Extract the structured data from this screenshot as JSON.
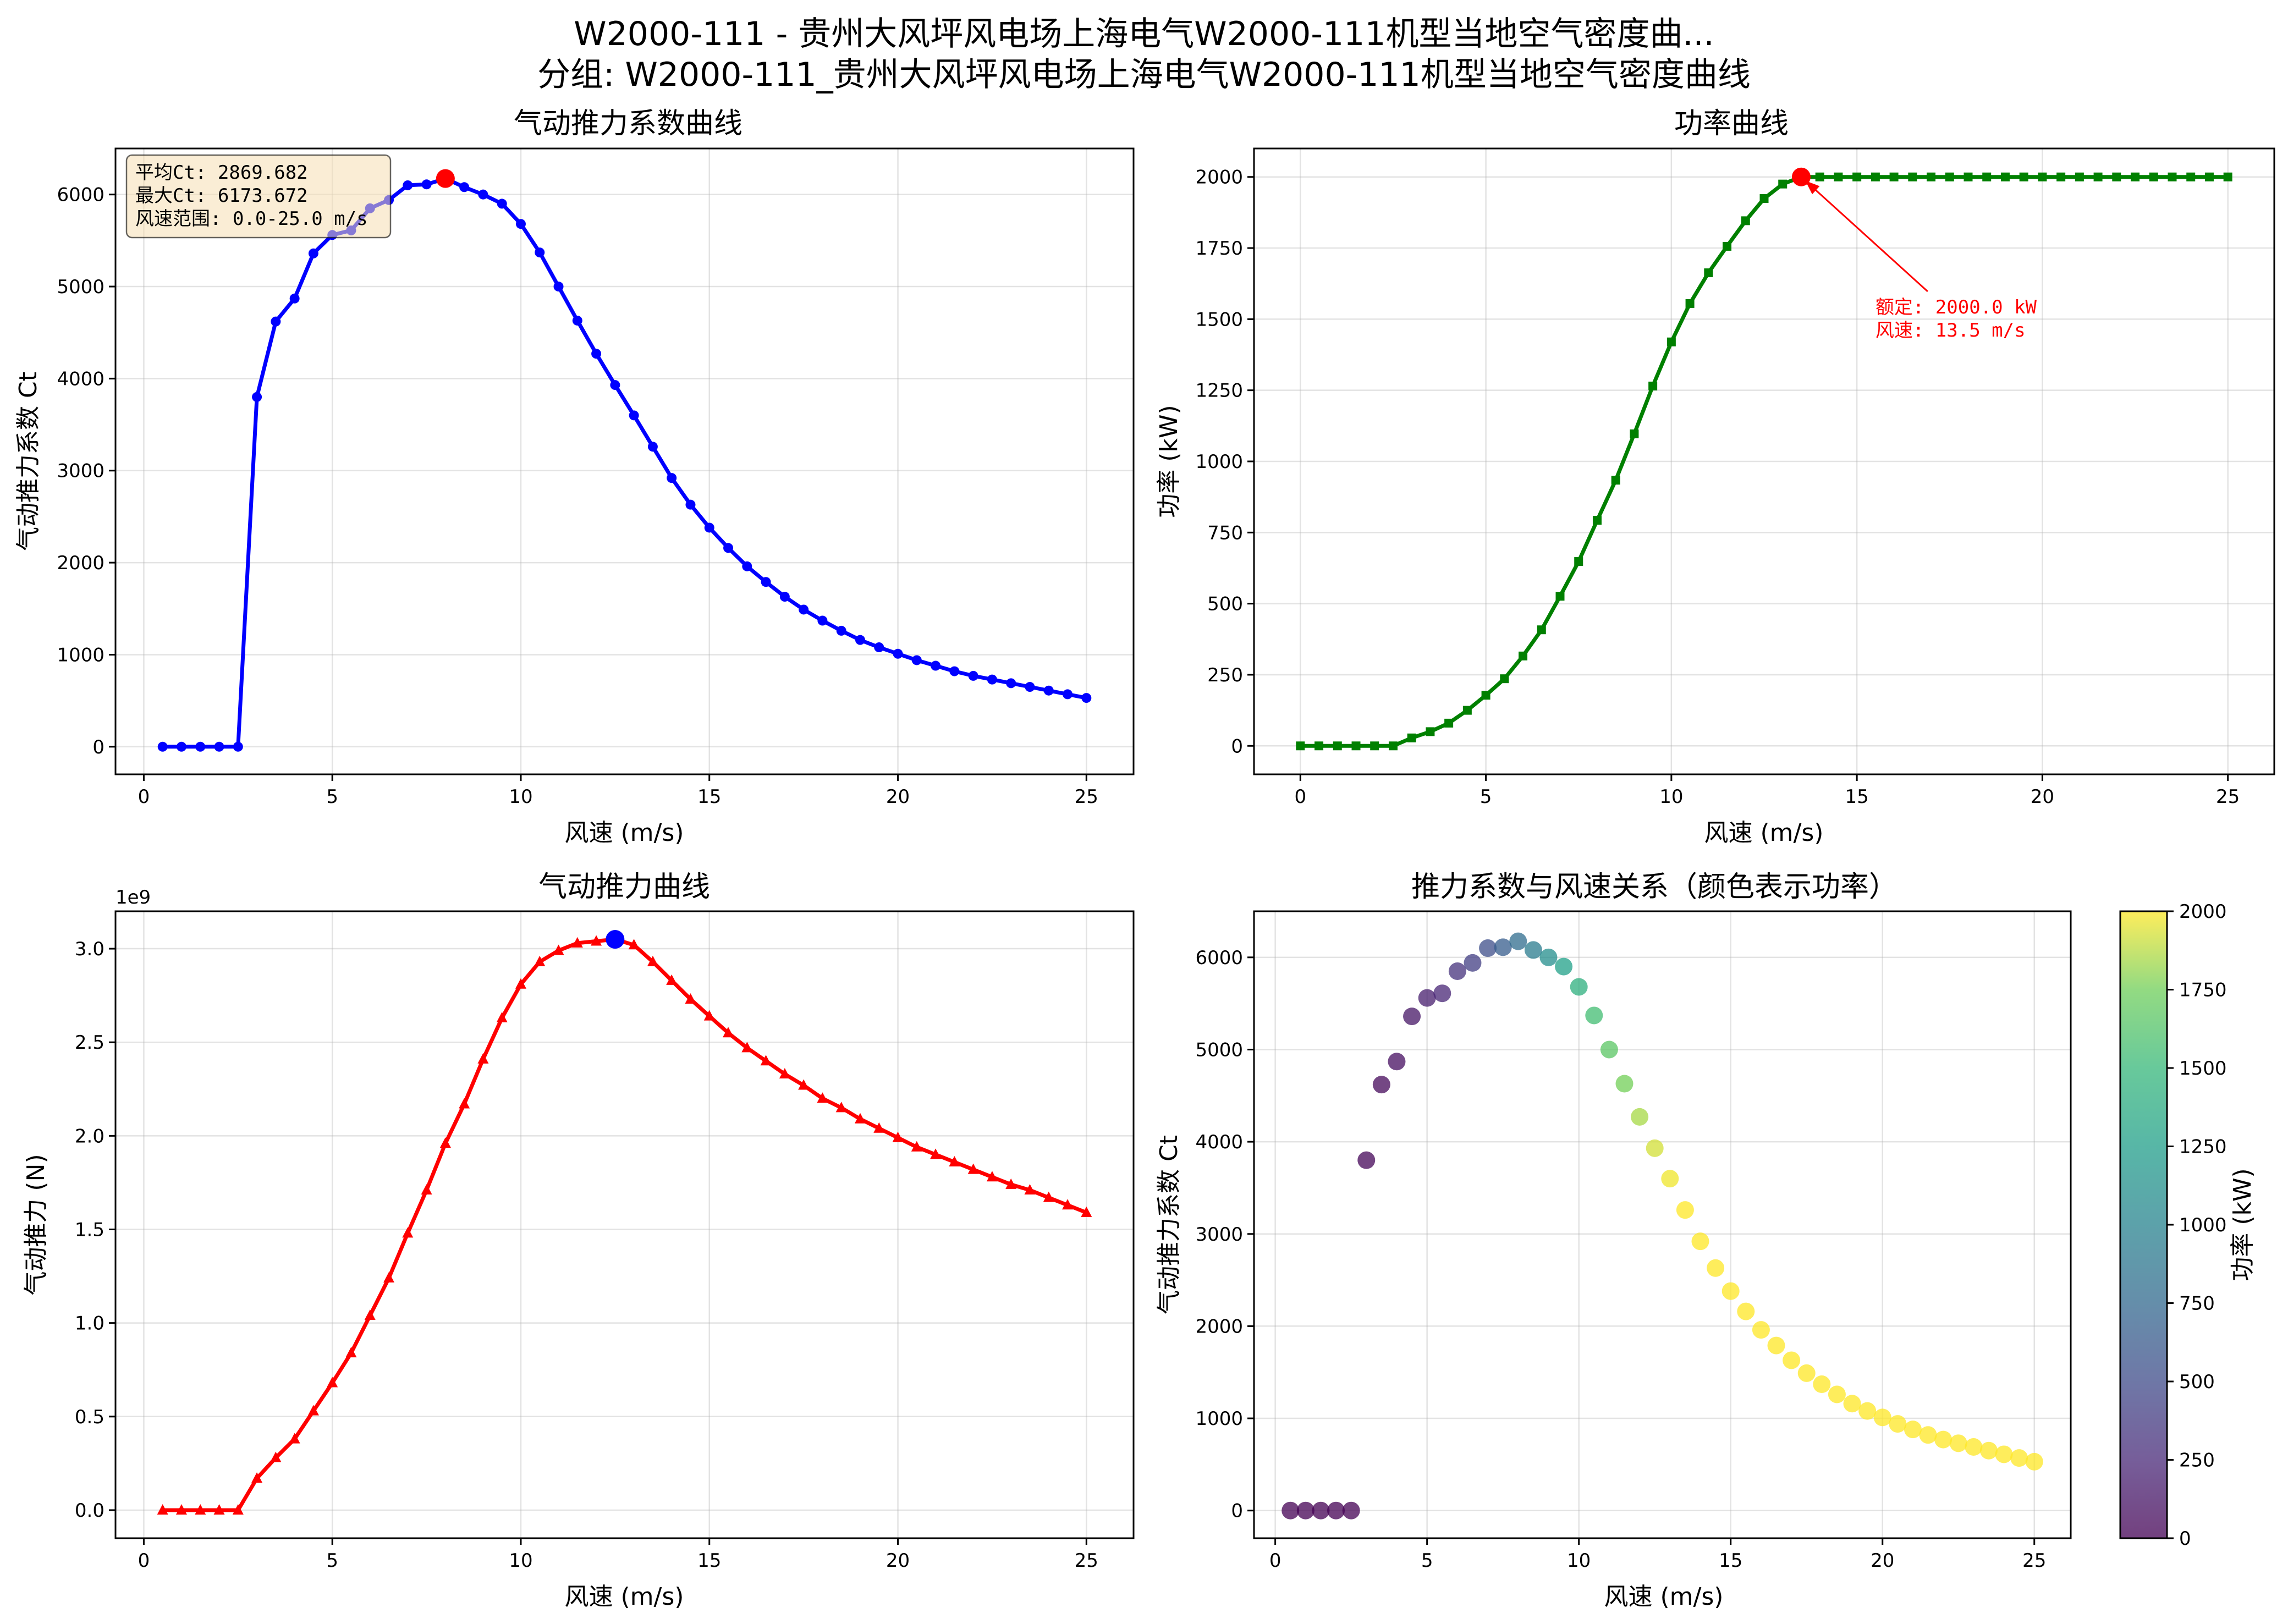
{
  "figure": {
    "title_line1": "W2000-111 - 贵州大风坪风电场上海电气W2000-111机型当地空气密度曲...",
    "title_line2": "分组: W2000-111_贵州大风坪风电场上海电气W2000-111机型当地空气密度曲线"
  },
  "colors": {
    "ct_line": "#0000ff",
    "power_line": "#008000",
    "thrust_line": "#ff0000",
    "highlight_red": "#ff0000",
    "highlight_blue": "#0000ff",
    "stats_box_bg": "#f5deb3",
    "colormap": "viridis"
  },
  "chart_data": [
    {
      "id": "ct",
      "type": "line",
      "title": "气动推力系数曲线",
      "xlabel": "风速 (m/s)",
      "ylabel": "气动推力系数 Ct",
      "xlim": [
        -0.75,
        26.25
      ],
      "ylim": [
        -300,
        6500
      ],
      "xticks": [
        0,
        5,
        10,
        15,
        20,
        25
      ],
      "yticks": [
        0,
        1000,
        2000,
        3000,
        4000,
        5000,
        6000
      ],
      "grid": true,
      "marker": "circle",
      "x": [
        0.5,
        1.0,
        1.5,
        2.0,
        2.5,
        3.0,
        3.5,
        4.0,
        4.5,
        5.0,
        5.5,
        6.0,
        6.5,
        7.0,
        7.5,
        8.0,
        8.5,
        9.0,
        9.5,
        10.0,
        10.5,
        11.0,
        11.5,
        12.0,
        12.5,
        13.0,
        13.5,
        14.0,
        14.5,
        15.0,
        15.5,
        16.0,
        16.5,
        17.0,
        17.5,
        18.0,
        18.5,
        19.0,
        19.5,
        20.0,
        20.5,
        21.0,
        21.5,
        22.0,
        22.5,
        23.0,
        23.5,
        24.0,
        24.5,
        25.0
      ],
      "y": [
        0,
        0,
        0,
        0,
        0,
        3800,
        4620,
        4870,
        5360,
        5560,
        5610,
        5850,
        5940,
        6100,
        6110,
        6174,
        6080,
        6000,
        5900,
        5680,
        5370,
        5000,
        4630,
        4270,
        3930,
        3600,
        3260,
        2920,
        2630,
        2380,
        2160,
        1960,
        1790,
        1630,
        1490,
        1370,
        1260,
        1160,
        1080,
        1010,
        940,
        880,
        820,
        770,
        730,
        690,
        650,
        610,
        570,
        530
      ],
      "highlight": {
        "x": 8.0,
        "y": 6173.672
      },
      "stats": {
        "line1": "平均Ct: 2869.682",
        "line2": "最大Ct: 6173.672",
        "line3": "风速范围: 0.0-25.0 m/s"
      }
    },
    {
      "id": "power",
      "type": "line",
      "title": "功率曲线",
      "xlabel": "风速 (m/s)",
      "ylabel": "功率 (kW)",
      "xlim": [
        -1.25,
        26.25
      ],
      "ylim": [
        -100,
        2100
      ],
      "xticks": [
        0,
        5,
        10,
        15,
        20,
        25
      ],
      "yticks": [
        0,
        250,
        500,
        750,
        1000,
        1250,
        1500,
        1750,
        2000
      ],
      "grid": true,
      "marker": "square",
      "x": [
        0.0,
        0.5,
        1.0,
        1.5,
        2.0,
        2.5,
        3.0,
        3.5,
        4.0,
        4.5,
        5.0,
        5.5,
        6.0,
        6.5,
        7.0,
        7.5,
        8.0,
        8.5,
        9.0,
        9.5,
        10.0,
        10.5,
        11.0,
        11.5,
        12.0,
        12.5,
        13.0,
        13.5,
        14.0,
        14.5,
        15.0,
        15.5,
        16.0,
        16.5,
        17.0,
        17.5,
        18.0,
        18.5,
        19.0,
        19.5,
        20.0,
        20.5,
        21.0,
        21.5,
        22.0,
        22.5,
        23.0,
        23.5,
        24.0,
        24.5,
        25.0
      ],
      "y": [
        0,
        0,
        0,
        0,
        0,
        0,
        28,
        50,
        80,
        125,
        178,
        236,
        316,
        408,
        526,
        648,
        793,
        934,
        1097,
        1265,
        1420,
        1555,
        1663,
        1756,
        1846,
        1924,
        1975,
        2000,
        2000,
        2000,
        2000,
        2000,
        2000,
        2000,
        2000,
        2000,
        2000,
        2000,
        2000,
        2000,
        2000,
        2000,
        2000,
        2000,
        2000,
        2000,
        2000,
        2000,
        2000,
        2000,
        2000
      ],
      "highlight": {
        "x": 13.5,
        "y": 2000
      },
      "annotation": {
        "line1": "额定: 2000.0 kW",
        "line2": "风速: 13.5 m/s",
        "text_x": 15.5,
        "text_y": 1520
      }
    },
    {
      "id": "thrust",
      "type": "line",
      "title": "气动推力曲线",
      "xlabel": "风速 (m/s)",
      "ylabel": "气动推力 (N)",
      "offset_label": "1e9",
      "xlim": [
        -0.75,
        26.25
      ],
      "ylim": [
        -0.15,
        3.2
      ],
      "xticks": [
        0,
        5,
        10,
        15,
        20,
        25
      ],
      "yticks": [
        0.0,
        0.5,
        1.0,
        1.5,
        2.0,
        2.5,
        3.0
      ],
      "ytick_labels": [
        "0.0",
        "0.5",
        "1.0",
        "1.5",
        "2.0",
        "2.5",
        "3.0"
      ],
      "grid": true,
      "marker": "triangle",
      "x": [
        0.5,
        1.0,
        1.5,
        2.0,
        2.5,
        3.0,
        3.5,
        4.0,
        4.5,
        5.0,
        5.5,
        6.0,
        6.5,
        7.0,
        7.5,
        8.0,
        8.5,
        9.0,
        9.5,
        10.0,
        10.5,
        11.0,
        11.5,
        12.0,
        12.5,
        13.0,
        13.5,
        14.0,
        14.5,
        15.0,
        15.5,
        16.0,
        16.5,
        17.0,
        17.5,
        18.0,
        18.5,
        19.0,
        19.5,
        20.0,
        20.5,
        21.0,
        21.5,
        22.0,
        22.5,
        23.0,
        23.5,
        24.0,
        24.5,
        25.0
      ],
      "y": [
        0,
        0,
        0,
        0,
        0,
        0.17,
        0.28,
        0.38,
        0.53,
        0.68,
        0.84,
        1.04,
        1.24,
        1.48,
        1.71,
        1.96,
        2.17,
        2.41,
        2.63,
        2.81,
        2.93,
        2.99,
        3.03,
        3.04,
        3.05,
        3.02,
        2.93,
        2.83,
        2.73,
        2.64,
        2.55,
        2.47,
        2.4,
        2.33,
        2.27,
        2.2,
        2.15,
        2.09,
        2.04,
        1.99,
        1.94,
        1.9,
        1.86,
        1.82,
        1.78,
        1.74,
        1.71,
        1.67,
        1.63,
        1.59
      ],
      "highlight": {
        "x": 12.5,
        "y": 3.05
      }
    },
    {
      "id": "scatter",
      "type": "scatter",
      "title": "推力系数与风速关系（颜色表示功率）",
      "xlabel": "风速 (m/s)",
      "ylabel": "气动推力系数 Ct",
      "xlim": [
        -0.7,
        26.2
      ],
      "ylim": [
        -300,
        6500
      ],
      "xticks": [
        0,
        5,
        10,
        15,
        20,
        25
      ],
      "yticks": [
        0,
        1000,
        2000,
        3000,
        4000,
        5000,
        6000
      ],
      "grid": true,
      "colorbar": {
        "label": "功率 (kW)",
        "min": 0,
        "max": 2000,
        "ticks": [
          0,
          250,
          500,
          750,
          1000,
          1250,
          1500,
          1750,
          2000
        ]
      },
      "x": [
        0.5,
        1.0,
        1.5,
        2.0,
        2.5,
        3.0,
        3.5,
        4.0,
        4.5,
        5.0,
        5.5,
        6.0,
        6.5,
        7.0,
        7.5,
        8.0,
        8.5,
        9.0,
        9.5,
        10.0,
        10.5,
        11.0,
        11.5,
        12.0,
        12.5,
        13.0,
        13.5,
        14.0,
        14.5,
        15.0,
        15.5,
        16.0,
        16.5,
        17.0,
        17.5,
        18.0,
        18.5,
        19.0,
        19.5,
        20.0,
        20.5,
        21.0,
        21.5,
        22.0,
        22.5,
        23.0,
        23.5,
        24.0,
        24.5,
        25.0
      ],
      "y": [
        0,
        0,
        0,
        0,
        0,
        3800,
        4620,
        4870,
        5360,
        5560,
        5610,
        5850,
        5940,
        6100,
        6110,
        6174,
        6080,
        6000,
        5900,
        5680,
        5370,
        5000,
        4630,
        4270,
        3930,
        3600,
        3260,
        2920,
        2630,
        2380,
        2160,
        1960,
        1790,
        1630,
        1490,
        1370,
        1260,
        1160,
        1080,
        1010,
        940,
        880,
        820,
        770,
        730,
        690,
        650,
        610,
        570,
        530
      ],
      "power": [
        0,
        0,
        0,
        0,
        0,
        28,
        50,
        80,
        125,
        178,
        236,
        316,
        408,
        526,
        648,
        793,
        934,
        1097,
        1265,
        1420,
        1555,
        1663,
        1756,
        1846,
        1924,
        1975,
        2000,
        2000,
        2000,
        2000,
        2000,
        2000,
        2000,
        2000,
        2000,
        2000,
        2000,
        2000,
        2000,
        2000,
        2000,
        2000,
        2000,
        2000,
        2000,
        2000,
        2000,
        2000,
        2000,
        2000
      ]
    }
  ]
}
